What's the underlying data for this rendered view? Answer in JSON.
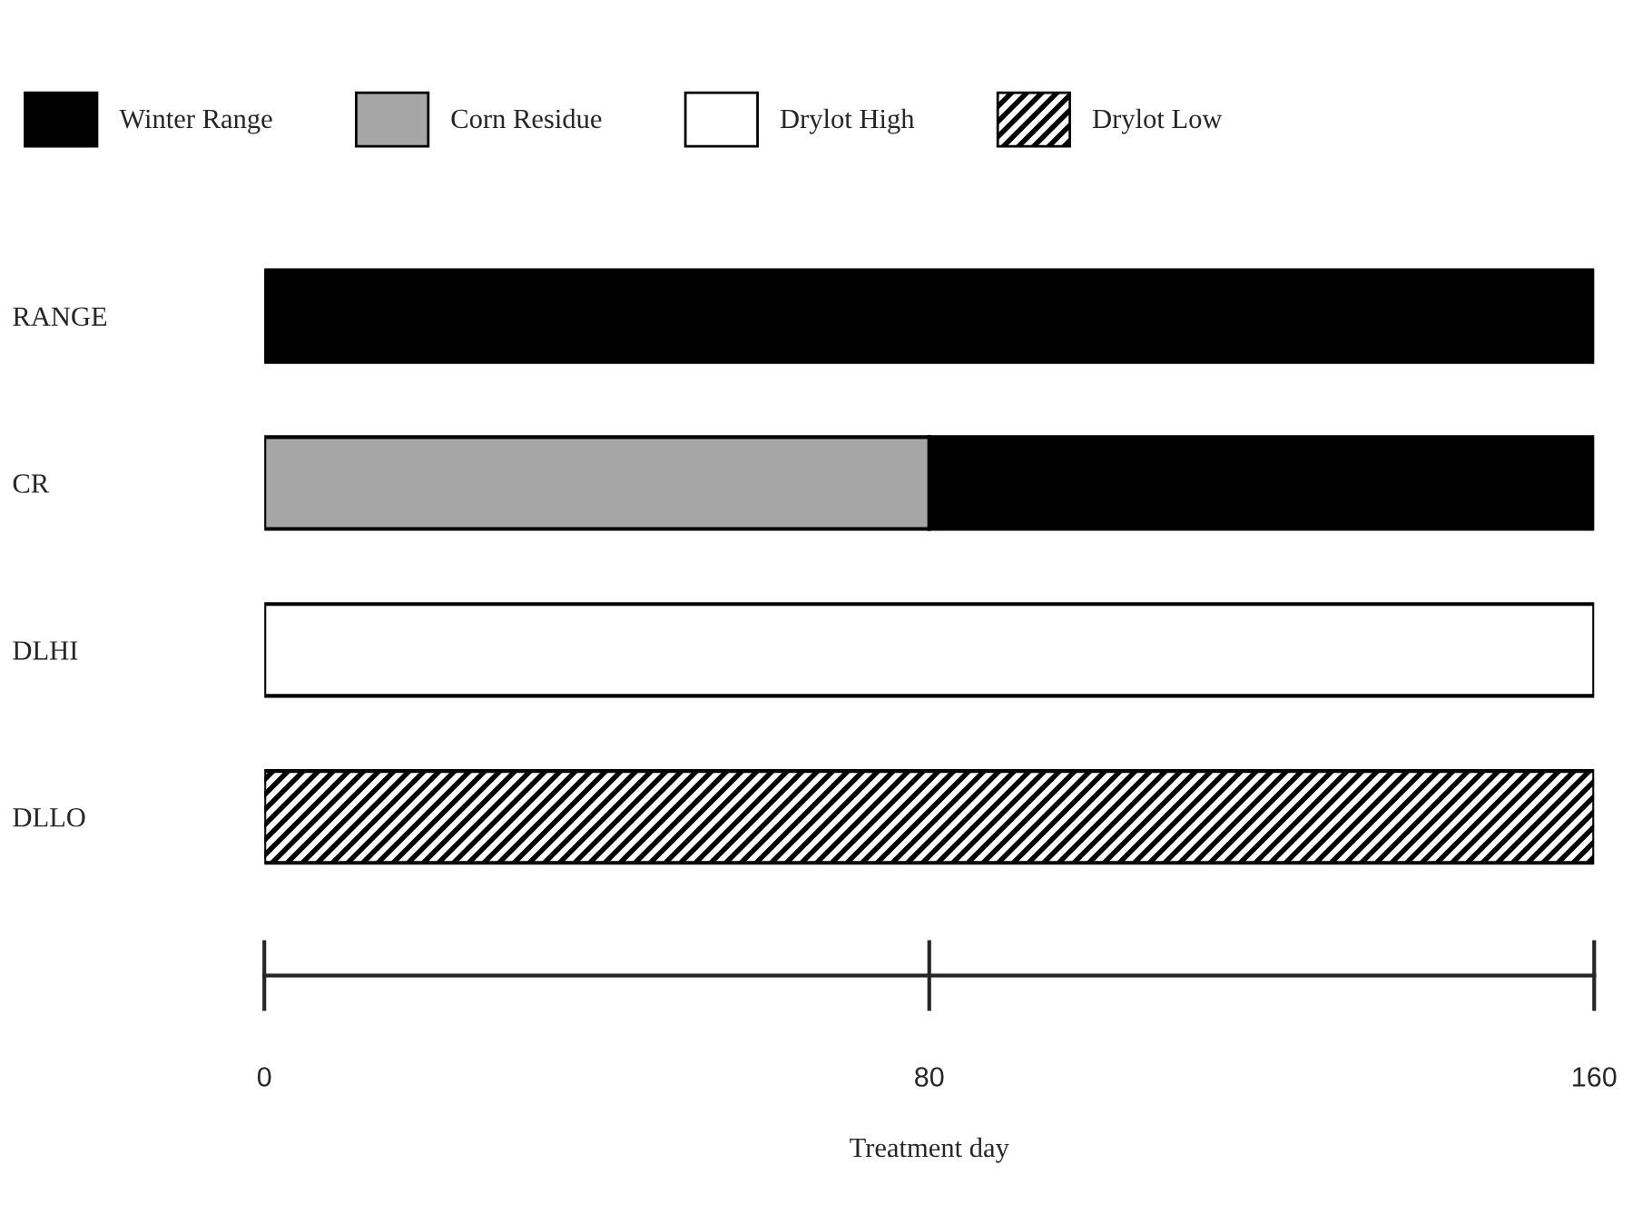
{
  "chart_data": {
    "type": "bar",
    "orientation": "horizontal",
    "xlabel": "Treatment day",
    "categories": [
      "RANGE",
      "CR",
      "DLHI",
      "DLLO"
    ],
    "series": [
      {
        "name": "Winter Range",
        "color": "#000000",
        "values": [
          160,
          80,
          null,
          null
        ],
        "base": [
          0,
          80,
          null,
          null
        ]
      },
      {
        "name": "Corn Residue",
        "color": "#a6a6a6",
        "values": [
          null,
          80,
          null,
          null
        ],
        "base": [
          null,
          0,
          null,
          null
        ]
      },
      {
        "name": "Drylot High",
        "color": "#ffffff",
        "values": [
          null,
          null,
          160,
          null
        ],
        "base": [
          null,
          null,
          0,
          null
        ]
      },
      {
        "name": "Drylot Low",
        "color": "#000000",
        "values": [
          null,
          null,
          null,
          160
        ],
        "base": [
          null,
          null,
          null,
          0
        ]
      }
    ],
    "xlim": [
      0,
      160
    ],
    "xticks": [
      0,
      80,
      160
    ],
    "grid": false,
    "legend": "top"
  }
}
